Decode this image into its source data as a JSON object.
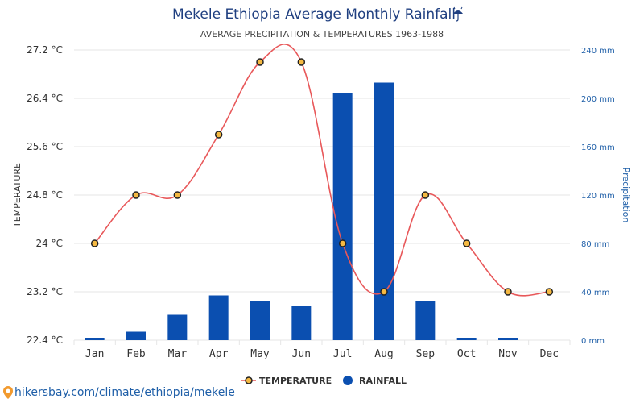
{
  "header": {
    "title": "Mekele Ethiopia Average Monthly Rainfall",
    "title_icon": "umbrella-rain-icon",
    "subtitle": "AVERAGE PRECIPITATION & TEMPERATURES 1963-1988"
  },
  "footer": {
    "link_text": "hikersbay.com/climate/ethiopia/mekele",
    "icon": "location-pin-icon"
  },
  "chart_data": {
    "type": "bar",
    "title": "Mekele Ethiopia Average Monthly Rainfall",
    "subtitle": "AVERAGE PRECIPITATION & TEMPERATURES 1963-1988",
    "categories": [
      "Jan",
      "Feb",
      "Mar",
      "Apr",
      "May",
      "Jun",
      "Jul",
      "Aug",
      "Sep",
      "Oct",
      "Nov",
      "Dec"
    ],
    "series": [
      {
        "name": "TEMPERATURE",
        "type": "line",
        "axis": "left",
        "color": "#e8585a",
        "marker_fill": "#f5b942",
        "values": [
          24.0,
          24.8,
          24.8,
          25.8,
          27.0,
          27.0,
          24.0,
          23.2,
          24.8,
          24.0,
          23.2,
          23.2
        ]
      },
      {
        "name": "RAINFALL",
        "type": "bar",
        "axis": "right",
        "color": "#0b4fb0",
        "values": [
          2,
          7,
          21,
          37,
          32,
          28,
          204,
          213,
          32,
          2,
          2,
          0
        ]
      }
    ],
    "y_left": {
      "label": "TEMPERATURE",
      "ticks": [
        "27.2 °C",
        "26.4 °C",
        "25.6 °C",
        "24.8 °C",
        "24 °C",
        "23.2 °C",
        "22.4 °C"
      ],
      "range": [
        22.4,
        27.2
      ]
    },
    "y_right": {
      "label": "Precipitation",
      "ticks": [
        "240 mm",
        "200 mm",
        "160 mm",
        "120 mm",
        "80 mm",
        "40 mm",
        "0 mm"
      ],
      "range": [
        0,
        240
      ]
    },
    "grid": true,
    "legend_position": "bottom-center"
  }
}
